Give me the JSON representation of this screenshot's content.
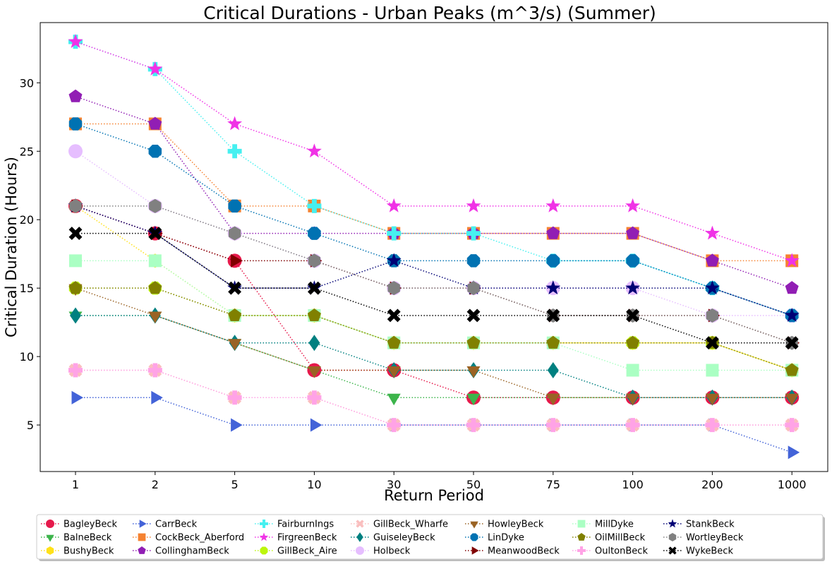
{
  "chart_data": {
    "type": "line",
    "title": "Critical Durations - Urban Peaks (m^3/s) (Summer)",
    "xlabel": "Return Period",
    "ylabel": "Critical Duration (Hours)",
    "categories": [
      "1",
      "2",
      "5",
      "10",
      "30",
      "50",
      "75",
      "100",
      "200",
      "1000"
    ],
    "ylim": [
      1.6,
      34.4
    ],
    "yticks": [
      5,
      10,
      15,
      20,
      25,
      30
    ],
    "grid": false,
    "legend_position": "bottom",
    "series": [
      {
        "name": "BagleyBeck",
        "color": "#e6194b",
        "marker": "circle",
        "values": [
          21,
          19,
          17,
          9,
          9,
          7,
          7,
          7,
          7,
          7
        ]
      },
      {
        "name": "BalneBeck",
        "color": "#3cb44b",
        "marker": "triangle-down",
        "values": [
          13,
          13,
          11,
          9,
          7,
          7,
          7,
          7,
          7,
          7
        ]
      },
      {
        "name": "BushyBeck",
        "color": "#ffe119",
        "marker": "hexagon",
        "values": [
          21,
          17,
          13,
          13,
          11,
          11,
          11,
          11,
          11,
          9
        ]
      },
      {
        "name": "CarrBeck",
        "color": "#4363d8",
        "marker": "triangle-right",
        "values": [
          7,
          7,
          5,
          5,
          5,
          5,
          5,
          5,
          5,
          3
        ]
      },
      {
        "name": "CockBeck_Aberford",
        "color": "#f58231",
        "marker": "square",
        "values": [
          27,
          27,
          21,
          21,
          19,
          19,
          19,
          19,
          17,
          17
        ]
      },
      {
        "name": "CollinghamBeck",
        "color": "#911eb4",
        "marker": "pentagon",
        "values": [
          29,
          27,
          19,
          19,
          19,
          19,
          19,
          19,
          17,
          15
        ]
      },
      {
        "name": "FairburnIngs",
        "color": "#46f0f0",
        "marker": "plus",
        "values": [
          33,
          31,
          25,
          21,
          19,
          19,
          17,
          17,
          15,
          13
        ]
      },
      {
        "name": "FirgreenBeck",
        "color": "#f032e6",
        "marker": "star",
        "values": [
          33,
          31,
          27,
          25,
          21,
          21,
          21,
          21,
          19,
          17
        ]
      },
      {
        "name": "GillBeck_Aire",
        "color": "#bcf60c",
        "marker": "octagon",
        "values": [
          15,
          15,
          13,
          13,
          11,
          11,
          11,
          11,
          11,
          9
        ]
      },
      {
        "name": "GillBeck_Wharfe",
        "color": "#fabebe",
        "marker": "x",
        "values": [
          9,
          9,
          7,
          7,
          5,
          5,
          5,
          5,
          5,
          5
        ]
      },
      {
        "name": "GuiseleyBeck",
        "color": "#008080",
        "marker": "diamond",
        "values": [
          13,
          13,
          11,
          11,
          9,
          9,
          9,
          7,
          7,
          7
        ]
      },
      {
        "name": "Holbeck",
        "color": "#e6beff",
        "marker": "circle",
        "values": [
          25,
          21,
          19,
          17,
          15,
          15,
          15,
          15,
          13,
          13
        ]
      },
      {
        "name": "HowleyBeck",
        "color": "#9a6324",
        "marker": "triangle-down",
        "values": [
          15,
          13,
          11,
          9,
          9,
          9,
          7,
          7,
          7,
          7
        ]
      },
      {
        "name": "LinDyke",
        "color": "#0072b2",
        "marker": "octagon",
        "values": [
          27,
          25,
          21,
          19,
          17,
          17,
          17,
          17,
          15,
          13
        ]
      },
      {
        "name": "MeanwoodBeck",
        "color": "#800000",
        "marker": "triangle-right",
        "values": [
          21,
          19,
          17,
          17,
          15,
          15,
          13,
          13,
          13,
          11
        ]
      },
      {
        "name": "MillDyke",
        "color": "#aaffc3",
        "marker": "square",
        "values": [
          17,
          17,
          13,
          13,
          11,
          11,
          11,
          9,
          9,
          9
        ]
      },
      {
        "name": "OilMillBeck",
        "color": "#808000",
        "marker": "pentagon",
        "values": [
          15,
          15,
          13,
          13,
          11,
          11,
          11,
          11,
          11,
          9
        ]
      },
      {
        "name": "OultonBeck",
        "color": "#ffa3e6",
        "marker": "plus",
        "values": [
          9,
          9,
          7,
          7,
          5,
          5,
          5,
          5,
          5,
          5
        ]
      },
      {
        "name": "StankBeck",
        "color": "#000075",
        "marker": "star",
        "values": [
          21,
          19,
          15,
          15,
          17,
          15,
          15,
          15,
          15,
          13
        ]
      },
      {
        "name": "WortleyBeck",
        "color": "#808080",
        "marker": "hexagon",
        "values": [
          21,
          21,
          19,
          17,
          15,
          15,
          13,
          13,
          13,
          11
        ]
      },
      {
        "name": "WykeBeck",
        "color": "#000000",
        "marker": "x",
        "values": [
          19,
          19,
          15,
          15,
          13,
          13,
          13,
          13,
          11,
          11
        ]
      }
    ]
  }
}
